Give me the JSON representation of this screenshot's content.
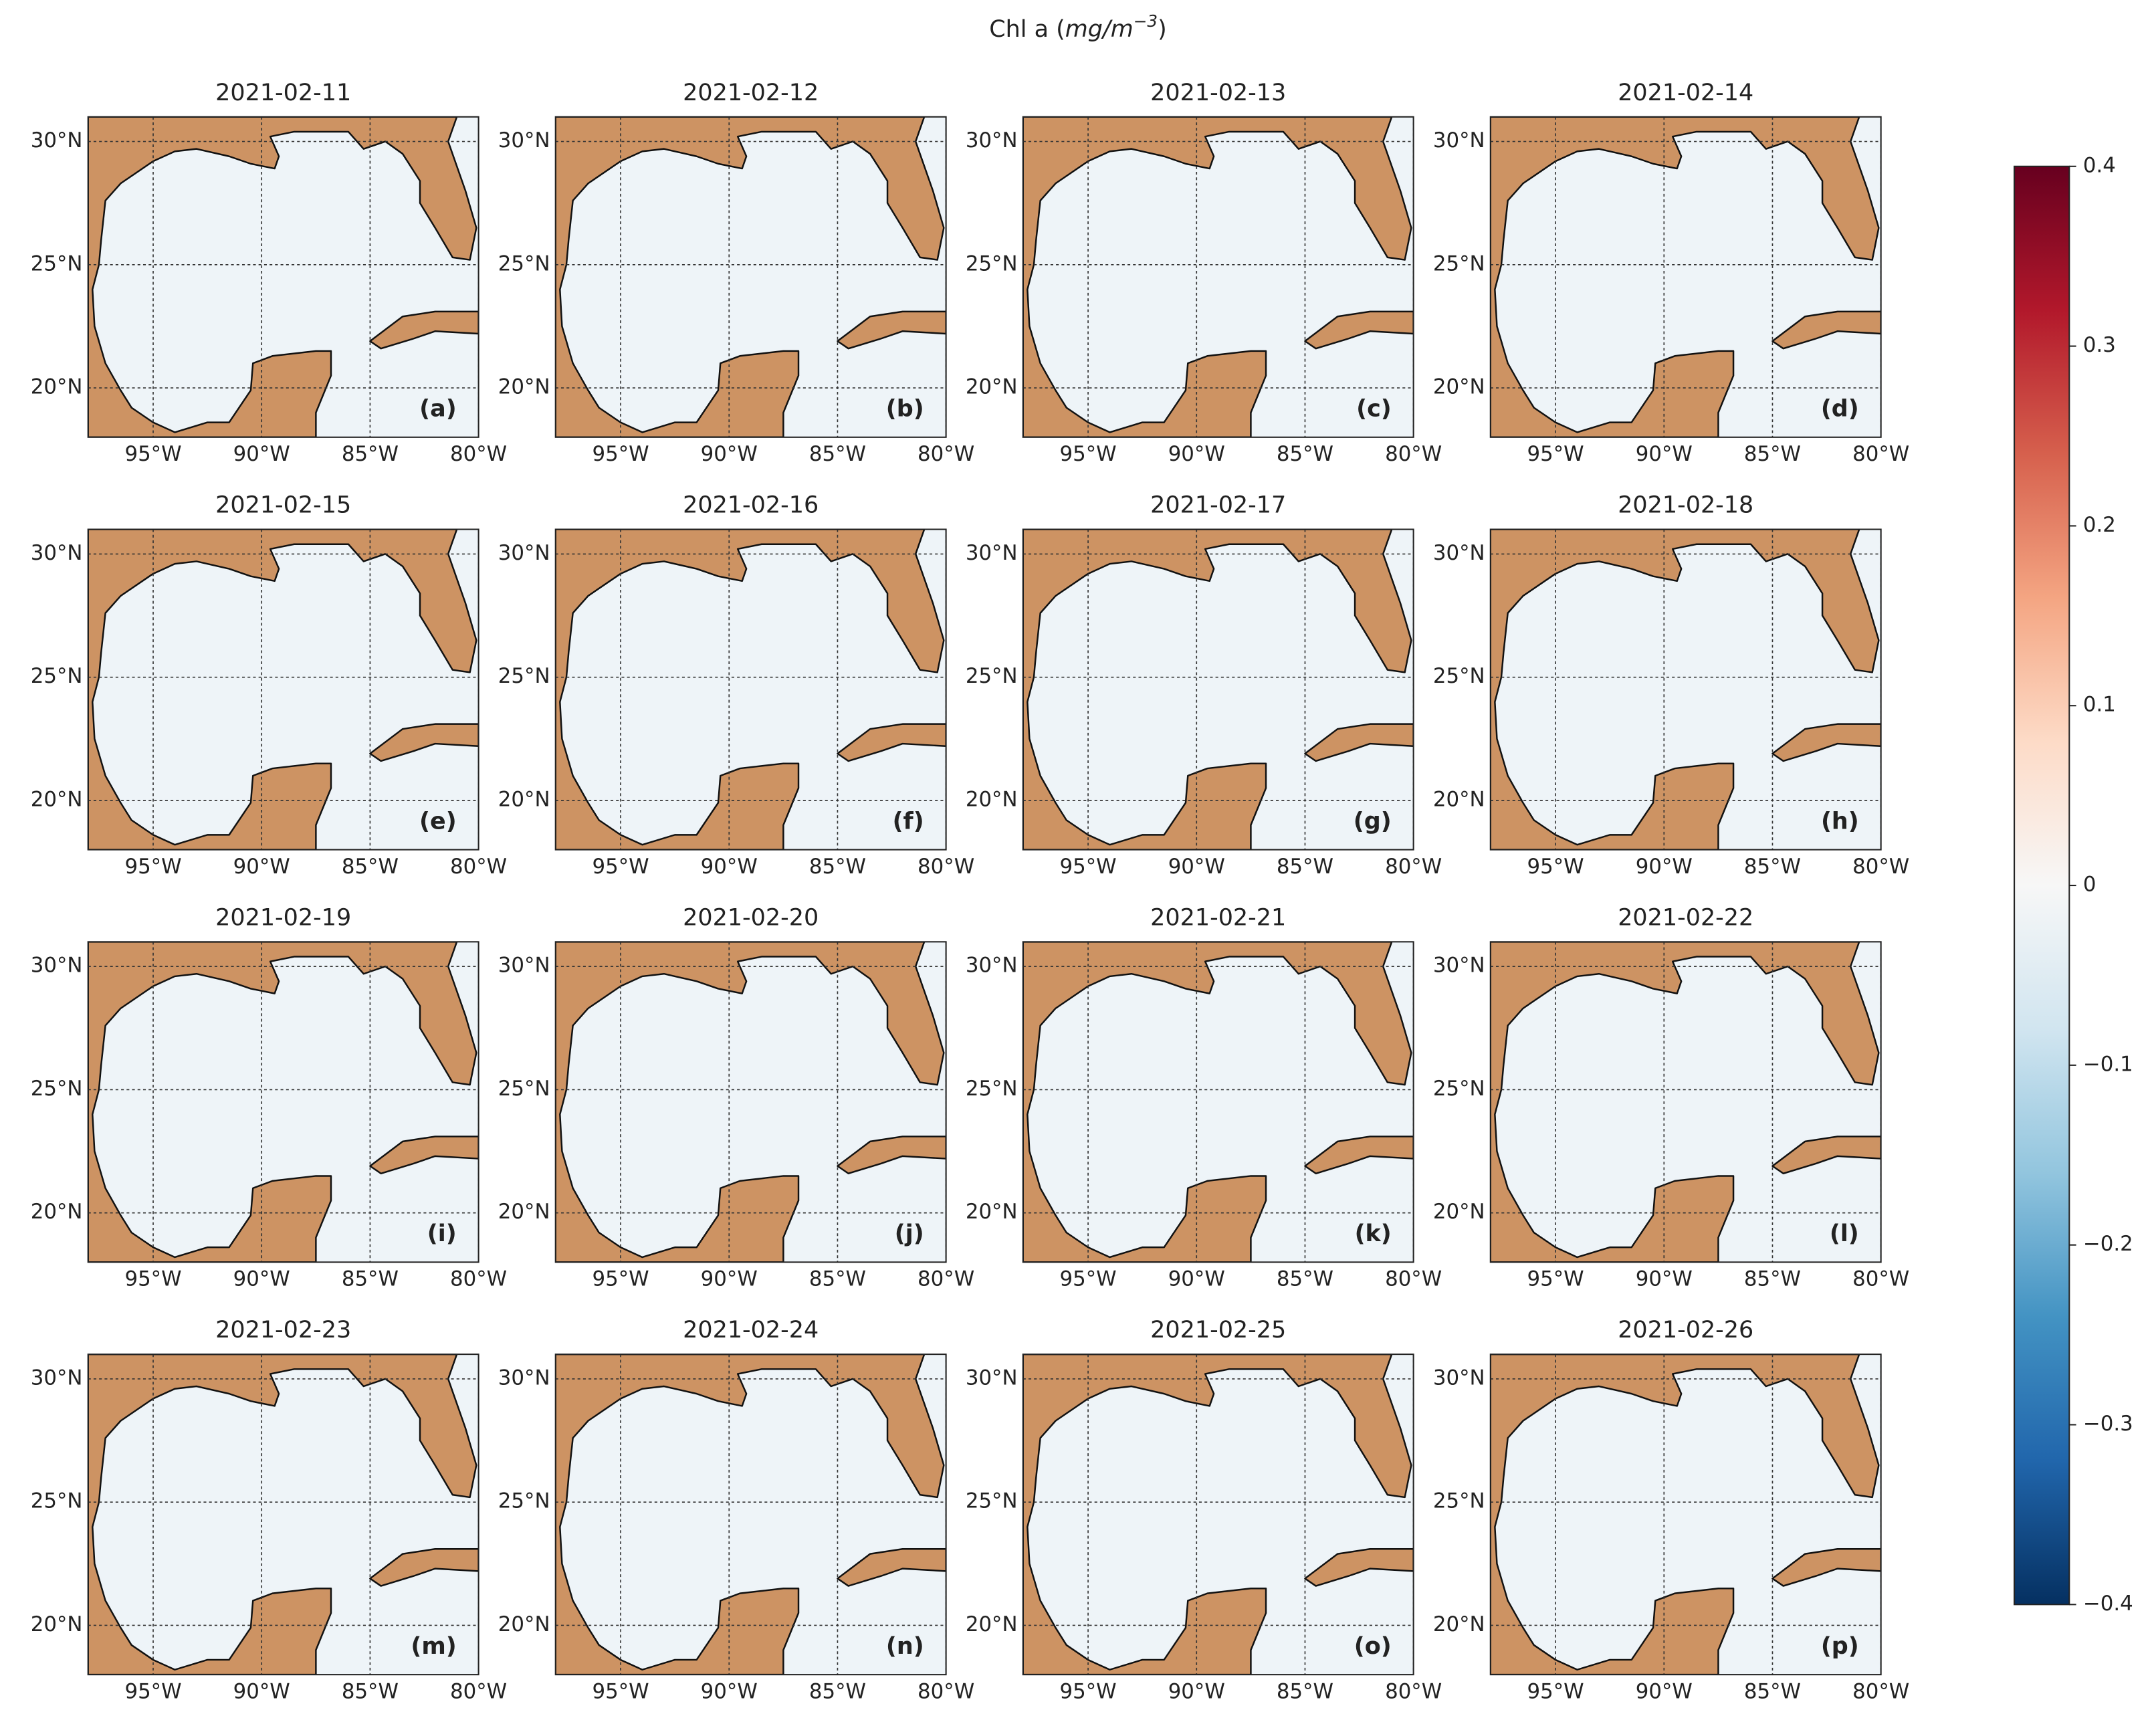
{
  "title": {
    "prefix": "Chl a (",
    "units": "mg/m",
    "exponent": "−3",
    "suffix": ")"
  },
  "lon_lim": [
    -98,
    -80
  ],
  "lat_lim": [
    18,
    31
  ],
  "lon_ticks": [
    {
      "value": -95,
      "label": "95°W"
    },
    {
      "value": -90,
      "label": "90°W"
    },
    {
      "value": -85,
      "label": "85°W"
    },
    {
      "value": -80,
      "label": "80°W"
    }
  ],
  "lat_ticks": [
    {
      "value": 20,
      "label": "20°N"
    },
    {
      "value": 25,
      "label": "25°N"
    },
    {
      "value": 30,
      "label": "30°N"
    }
  ],
  "panels": [
    {
      "date": "2021-02-11",
      "label": "(a)"
    },
    {
      "date": "2021-02-12",
      "label": "(b)"
    },
    {
      "date": "2021-02-13",
      "label": "(c)"
    },
    {
      "date": "2021-02-14",
      "label": "(d)"
    },
    {
      "date": "2021-02-15",
      "label": "(e)"
    },
    {
      "date": "2021-02-16",
      "label": "(f)"
    },
    {
      "date": "2021-02-17",
      "label": "(g)"
    },
    {
      "date": "2021-02-18",
      "label": "(h)"
    },
    {
      "date": "2021-02-19",
      "label": "(i)"
    },
    {
      "date": "2021-02-20",
      "label": "(j)"
    },
    {
      "date": "2021-02-21",
      "label": "(k)"
    },
    {
      "date": "2021-02-22",
      "label": "(l)"
    },
    {
      "date": "2021-02-23",
      "label": "(m)"
    },
    {
      "date": "2021-02-24",
      "label": "(n)"
    },
    {
      "date": "2021-02-25",
      "label": "(o)"
    },
    {
      "date": "2021-02-26",
      "label": "(p)"
    }
  ],
  "colorbar": {
    "lim": [
      -0.4,
      0.4
    ],
    "ticks": [
      {
        "value": -0.4,
        "label": "−0.4"
      },
      {
        "value": -0.3,
        "label": "−0.3"
      },
      {
        "value": -0.2,
        "label": "−0.2"
      },
      {
        "value": -0.1,
        "label": "−0.1"
      },
      0.0,
      0.1,
      0.2,
      0.3,
      0.4
    ]
  }
}
